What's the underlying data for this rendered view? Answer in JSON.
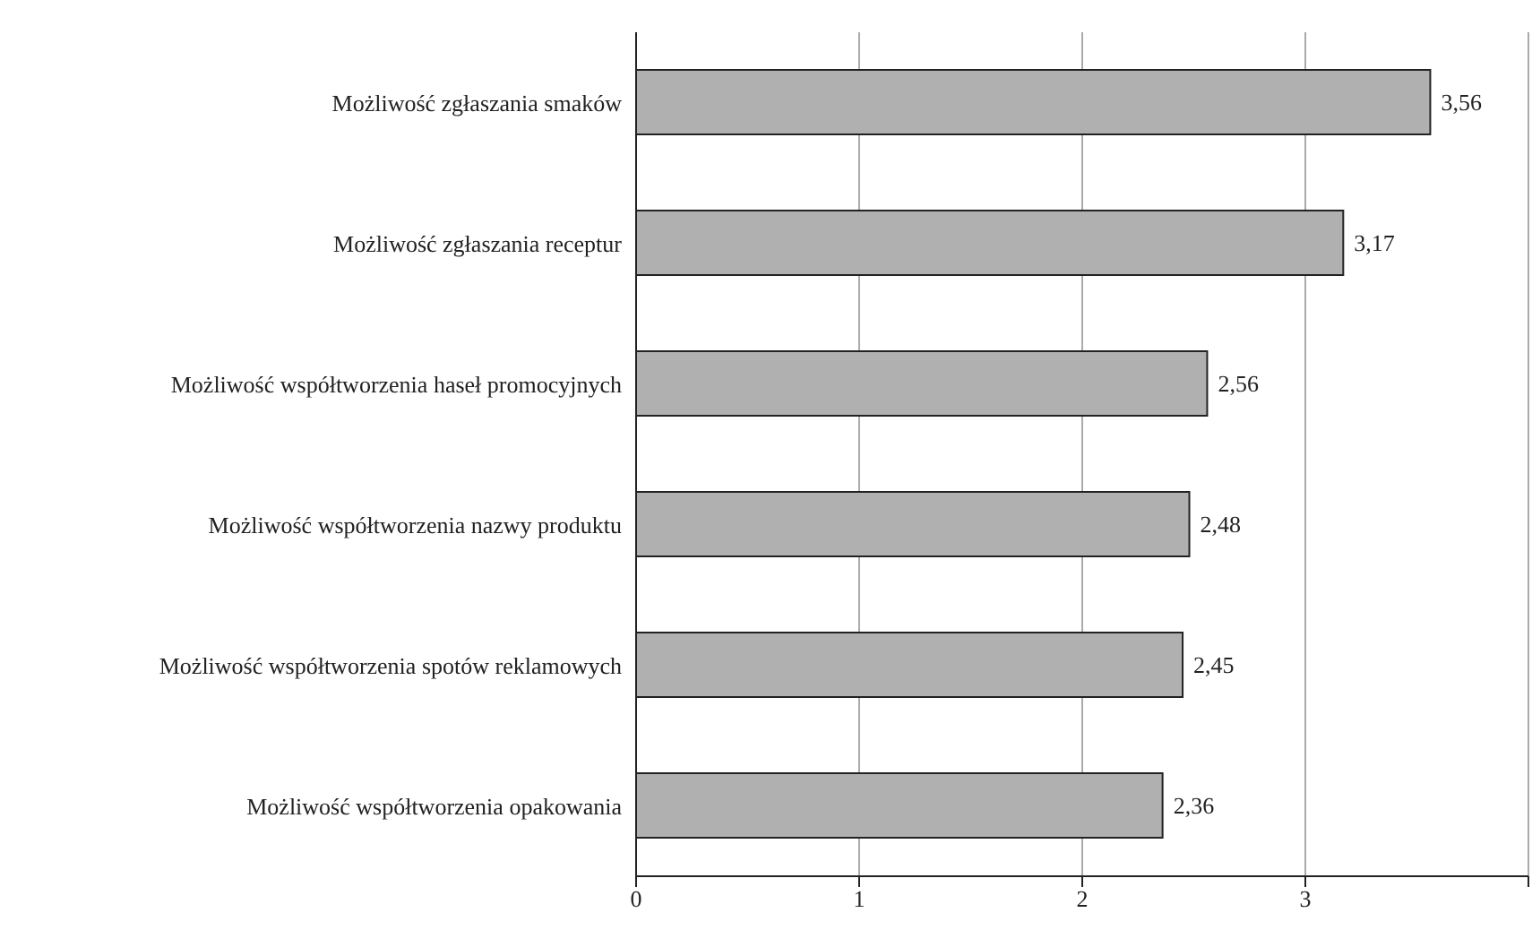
{
  "chart_data": {
    "type": "bar",
    "orientation": "horizontal",
    "categories": [
      "Możliwość zgłaszania smaków",
      "Możliwość zgłaszania receptur",
      "Możliwość współtworzenia haseł promocyjnych",
      "Możliwość współtworzenia nazwy produktu",
      "Możliwość współtworzenia spotów reklamowych",
      "Możliwość współtworzenia opakowania"
    ],
    "values": [
      3.56,
      3.17,
      2.56,
      2.48,
      2.45,
      2.36
    ],
    "value_labels": [
      "3,56",
      "3,17",
      "2,56",
      "2,48",
      "2,45",
      "2,36"
    ],
    "color": "#b0b0b0",
    "xlim": [
      0,
      4
    ],
    "xticks": [
      0,
      1,
      2,
      3,
      {
        "value": 4,
        "label": null
      }
    ],
    "grid": "x"
  }
}
